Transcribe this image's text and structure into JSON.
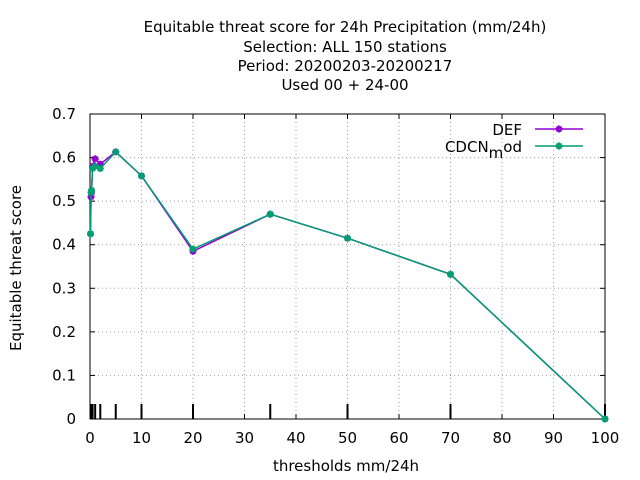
{
  "chart_data": {
    "type": "line",
    "title_lines": [
      "Equitable threat score  for 24h Precipitation (mm/24h)",
      "Selection: ALL    150 stations",
      "Period: 20200203-20200217",
      "Used  00 + 24-00"
    ],
    "xlabel": "thresholds mm/24h",
    "ylabel": "Equitable threat score",
    "xlim": [
      0,
      100
    ],
    "ylim": [
      0,
      0.7
    ],
    "xticks": [
      0,
      10,
      20,
      30,
      40,
      50,
      60,
      70,
      80,
      90,
      100
    ],
    "yticks": [
      0,
      0.1,
      0.2,
      0.3,
      0.4,
      0.5,
      0.6,
      0.7
    ],
    "ytick_labels": [
      "0",
      "0.1",
      "0.2",
      "0.3",
      "0.4",
      "0.5",
      "0.6",
      "0.7"
    ],
    "grid": true,
    "legend_position": "top-right",
    "threshold_marks": [
      0.1,
      0.2,
      0.3,
      0.5,
      1,
      2,
      5,
      10,
      20,
      35,
      50,
      70,
      100
    ],
    "series": [
      {
        "name": "DEF",
        "color": "#9400d3",
        "x": [
          0.1,
          0.2,
          0.3,
          0.5,
          1,
          2,
          5,
          10,
          20,
          35,
          50,
          70,
          100
        ],
        "y": [
          0.425,
          0.51,
          0.52,
          0.58,
          0.597,
          0.585,
          0.613,
          0.558,
          0.385,
          0.47,
          0.415,
          0.332,
          0.0
        ]
      },
      {
        "name": "CDCN",
        "name_subscript": "m",
        "name_suffix": "od",
        "color": "#009e73",
        "x": [
          0.1,
          0.2,
          0.3,
          0.5,
          1,
          2,
          5,
          10,
          20,
          35,
          50,
          70,
          100
        ],
        "y": [
          0.425,
          0.52,
          0.525,
          0.575,
          0.58,
          0.575,
          0.613,
          0.558,
          0.39,
          0.47,
          0.415,
          0.332,
          0.0
        ]
      }
    ]
  }
}
